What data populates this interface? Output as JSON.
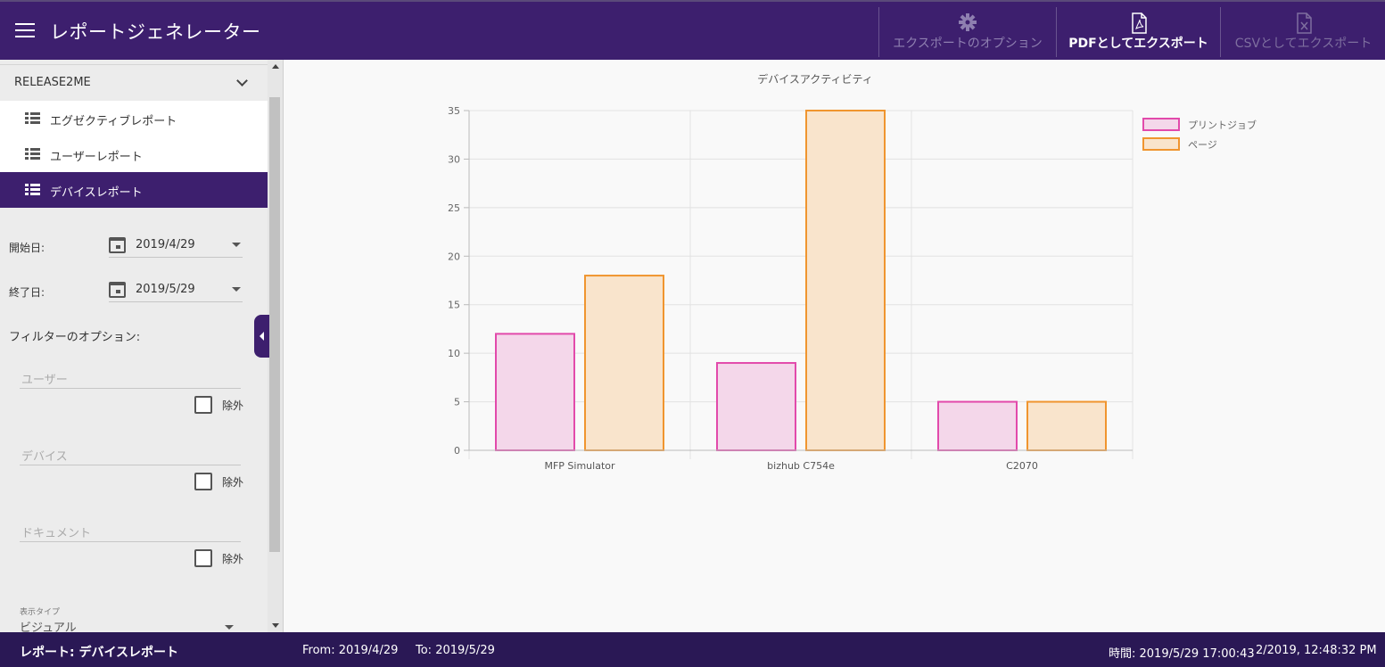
{
  "header": {
    "title": "レポートジェネレーター",
    "export_options": "エクスポートのオプション",
    "export_pdf": "PDFとしてエクスポート",
    "export_csv": "CSVとしてエクスポート"
  },
  "sidebar": {
    "group_label": "RELEASE2ME",
    "items": [
      {
        "label": "エグゼクティブレポート"
      },
      {
        "label": "ユーザーレポート"
      },
      {
        "label": "デバイスレポート"
      }
    ],
    "start_label": "開始日:",
    "start_value": "2019/4/29",
    "end_label": "終了日:",
    "end_value": "2019/5/29",
    "filter_title": "フィルターのオプション:",
    "user_placeholder": "ユーザー",
    "device_placeholder": "デバイス",
    "document_placeholder": "ドキュメント",
    "exclude_label": "除外",
    "display_type_label": "表示タイプ",
    "display_type_value": "ビジュアル"
  },
  "footer": {
    "report": "レポート: デバイスレポート",
    "from": "From: 2019/4/29",
    "to": "To: 2019/5/29",
    "time": "時間: 2019/5/29 17:00:43",
    "generated": "2/2019, 12:48:32 PM"
  },
  "colors": {
    "header_bg": "#3d1f6e",
    "footer_bg": "#2a1855",
    "series1_stroke": "#e24aab",
    "series1_fill": "#f4d7ea",
    "series2_stroke": "#f0952f",
    "series2_fill": "#f9e4cc"
  },
  "chart_data": {
    "type": "bar",
    "title": "デバイスアクティビティ",
    "categories": [
      "MFP Simulator",
      "bizhub C754e",
      "C2070"
    ],
    "series": [
      {
        "name": "プリントジョブ",
        "values": [
          12,
          9,
          5
        ]
      },
      {
        "name": "ページ",
        "values": [
          18,
          35,
          5
        ]
      }
    ],
    "ylim": [
      0,
      35
    ],
    "yticks": [
      0,
      5,
      10,
      15,
      20,
      25,
      30,
      35
    ],
    "grid": true,
    "legend_position": "top-right"
  }
}
